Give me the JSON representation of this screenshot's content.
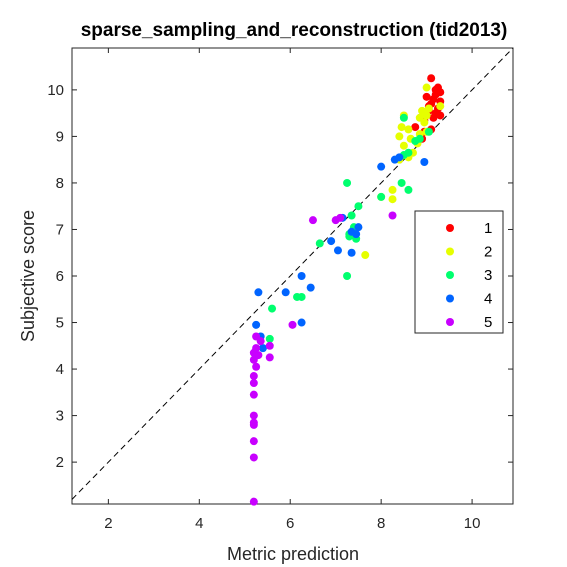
{
  "chart_data": {
    "type": "scatter",
    "title": "sparse_sampling_and_reconstruction (tid2013)",
    "xlabel": "Metric prediction",
    "ylabel": "Subjective score",
    "xlim": [
      1.2,
      10.9
    ],
    "ylim": [
      1.1,
      10.9
    ],
    "xticks": [
      2,
      4,
      6,
      8,
      10
    ],
    "yticks": [
      2,
      3,
      4,
      5,
      6,
      7,
      8,
      9,
      10
    ],
    "grid": false,
    "reference_line": "y = x (dashed)",
    "legend_position": "right",
    "series": [
      {
        "name": "1",
        "color": "#ff0000",
        "points": [
          [
            9.1,
            10.25
          ],
          [
            9.25,
            10.05
          ],
          [
            9.3,
            9.95
          ],
          [
            9.2,
            9.9
          ],
          [
            9.0,
            9.85
          ],
          [
            9.15,
            9.8
          ],
          [
            9.3,
            9.75
          ],
          [
            9.1,
            9.7
          ],
          [
            9.25,
            9.6
          ],
          [
            9.05,
            9.55
          ],
          [
            9.2,
            9.5
          ],
          [
            9.3,
            9.45
          ],
          [
            9.15,
            9.4
          ],
          [
            8.95,
            9.35
          ],
          [
            8.75,
            9.2
          ],
          [
            9.1,
            9.15
          ],
          [
            8.95,
            9.1
          ],
          [
            8.9,
            8.95
          ],
          [
            9.2,
            10.0
          ],
          [
            9.05,
            9.65
          ]
        ]
      },
      {
        "name": "2",
        "color": "#e6ff00",
        "points": [
          [
            9.3,
            9.65
          ],
          [
            9.05,
            9.6
          ],
          [
            8.9,
            9.55
          ],
          [
            8.95,
            9.5
          ],
          [
            9.0,
            9.45
          ],
          [
            8.85,
            9.4
          ],
          [
            8.95,
            9.3
          ],
          [
            8.5,
            9.45
          ],
          [
            8.45,
            9.2
          ],
          [
            8.6,
            9.15
          ],
          [
            9.0,
            9.1
          ],
          [
            8.85,
            9.05
          ],
          [
            8.4,
            9.0
          ],
          [
            8.65,
            8.95
          ],
          [
            8.8,
            8.85
          ],
          [
            8.5,
            8.8
          ],
          [
            8.7,
            8.65
          ],
          [
            8.6,
            8.55
          ],
          [
            8.4,
            8.5
          ],
          [
            8.25,
            7.85
          ],
          [
            8.0,
            7.7
          ],
          [
            8.25,
            7.65
          ],
          [
            7.65,
            6.45
          ],
          [
            9.0,
            10.05
          ]
        ]
      },
      {
        "name": "3",
        "color": "#00ff6e",
        "points": [
          [
            8.5,
            9.4
          ],
          [
            9.05,
            9.1
          ],
          [
            8.85,
            8.95
          ],
          [
            8.75,
            8.9
          ],
          [
            8.6,
            8.65
          ],
          [
            8.5,
            8.6
          ],
          [
            8.6,
            7.85
          ],
          [
            8.45,
            8.0
          ],
          [
            8.0,
            7.7
          ],
          [
            7.25,
            8.0
          ],
          [
            7.5,
            7.5
          ],
          [
            7.35,
            7.3
          ],
          [
            7.4,
            7.05
          ],
          [
            7.3,
            6.9
          ],
          [
            7.3,
            6.85
          ],
          [
            7.45,
            6.8
          ],
          [
            6.65,
            6.7
          ],
          [
            6.15,
            5.55
          ],
          [
            6.25,
            5.55
          ],
          [
            7.25,
            6.0
          ],
          [
            5.6,
            5.3
          ],
          [
            5.55,
            4.65
          ]
        ]
      },
      {
        "name": "4",
        "color": "#0064ff",
        "points": [
          [
            8.95,
            8.45
          ],
          [
            8.4,
            8.55
          ],
          [
            8.3,
            8.5
          ],
          [
            8.0,
            8.35
          ],
          [
            7.15,
            7.25
          ],
          [
            7.35,
            6.95
          ],
          [
            7.5,
            7.05
          ],
          [
            7.45,
            6.9
          ],
          [
            6.9,
            6.75
          ],
          [
            7.05,
            6.55
          ],
          [
            7.35,
            6.5
          ],
          [
            6.25,
            6.0
          ],
          [
            6.45,
            5.75
          ],
          [
            5.9,
            5.65
          ],
          [
            5.3,
            5.65
          ],
          [
            6.25,
            5.0
          ],
          [
            5.25,
            4.95
          ],
          [
            5.35,
            4.7
          ],
          [
            5.4,
            4.45
          ]
        ]
      },
      {
        "name": "5",
        "color": "#c800ff",
        "points": [
          [
            8.25,
            7.3
          ],
          [
            7.1,
            7.25
          ],
          [
            7.0,
            7.2
          ],
          [
            6.5,
            7.2
          ],
          [
            6.05,
            4.95
          ],
          [
            5.55,
            4.5
          ],
          [
            5.55,
            4.25
          ],
          [
            5.25,
            4.7
          ],
          [
            5.35,
            4.6
          ],
          [
            5.25,
            4.45
          ],
          [
            5.2,
            4.35
          ],
          [
            5.2,
            4.2
          ],
          [
            5.25,
            4.05
          ],
          [
            5.2,
            3.85
          ],
          [
            5.2,
            3.7
          ],
          [
            5.2,
            3.45
          ],
          [
            5.2,
            3.0
          ],
          [
            5.2,
            2.85
          ],
          [
            5.2,
            2.8
          ],
          [
            5.2,
            2.45
          ],
          [
            5.2,
            2.1
          ],
          [
            5.2,
            1.15
          ],
          [
            5.3,
            4.3
          ]
        ]
      }
    ]
  }
}
